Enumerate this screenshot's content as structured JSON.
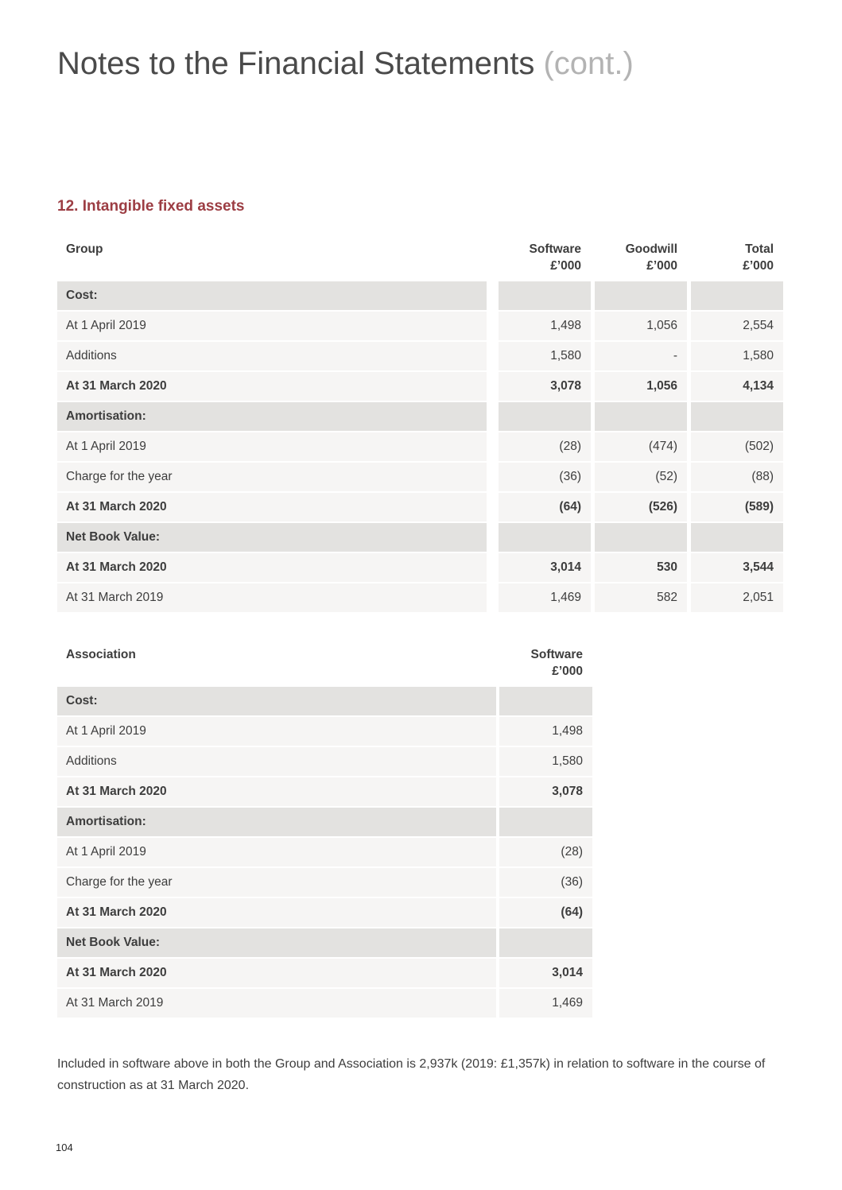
{
  "page": {
    "title": "Notes to the Financial Statements",
    "title_suffix": "(cont.)",
    "section_heading": "12. Intangible fixed assets",
    "footnote": "Included in software above in both the Group and Association is 2,937k (2019: £1,357k) in relation to software in the course of construction as at 31 March 2020.",
    "page_number": "104"
  },
  "colors": {
    "heading_accent": "#9c3d43",
    "title_text": "#4a4a4a",
    "title_suffix_text": "#b3b3b3",
    "section_row_bg": "#e3e2e0",
    "data_row_bg": "#f6f5f4",
    "body_text": "#3d3d3d"
  },
  "group_table": {
    "name": "Group",
    "columns": [
      {
        "label": "Software",
        "unit": "£’000"
      },
      {
        "label": "Goodwill",
        "unit": "£’000"
      },
      {
        "label": "Total",
        "unit": "£’000"
      }
    ],
    "rows": [
      {
        "type": "section",
        "label": "Cost:"
      },
      {
        "type": "data",
        "label": "At 1 April 2019",
        "values": [
          "1,498",
          "1,056",
          "2,554"
        ],
        "bold": false
      },
      {
        "type": "data",
        "label": "Additions",
        "values": [
          "1,580",
          "-",
          "1,580"
        ],
        "bold": false
      },
      {
        "type": "data",
        "label": "At 31 March 2020",
        "values": [
          "3,078",
          "1,056",
          "4,134"
        ],
        "bold": true
      },
      {
        "type": "section",
        "label": "Amortisation:"
      },
      {
        "type": "data",
        "label": "At 1 April 2019",
        "values": [
          "(28)",
          "(474)",
          "(502)"
        ],
        "bold": false
      },
      {
        "type": "data",
        "label": "Charge for the year",
        "values": [
          "(36)",
          "(52)",
          "(88)"
        ],
        "bold": false
      },
      {
        "type": "data",
        "label": "At 31 March 2020",
        "values": [
          "(64)",
          "(526)",
          "(589)"
        ],
        "bold": true
      },
      {
        "type": "section",
        "label": "Net Book Value:"
      },
      {
        "type": "data",
        "label": "At 31 March 2020",
        "values": [
          "3,014",
          "530",
          "3,544"
        ],
        "bold": true
      },
      {
        "type": "data",
        "label": "At 31 March 2019",
        "values": [
          "1,469",
          "582",
          "2,051"
        ],
        "bold": false
      }
    ]
  },
  "association_table": {
    "name": "Association",
    "columns": [
      {
        "label": "Software",
        "unit": "£’000"
      }
    ],
    "rows": [
      {
        "type": "section",
        "label": "Cost:"
      },
      {
        "type": "data",
        "label": "At 1 April 2019",
        "values": [
          "1,498"
        ],
        "bold": false
      },
      {
        "type": "data",
        "label": "Additions",
        "values": [
          "1,580"
        ],
        "bold": false
      },
      {
        "type": "data",
        "label": "At 31 March 2020",
        "values": [
          "3,078"
        ],
        "bold": true
      },
      {
        "type": "section",
        "label": "Amortisation:"
      },
      {
        "type": "data",
        "label": "At 1 April 2019",
        "values": [
          "(28)"
        ],
        "bold": false
      },
      {
        "type": "data",
        "label": "Charge for the year",
        "values": [
          "(36)"
        ],
        "bold": false
      },
      {
        "type": "data",
        "label": "At 31 March 2020",
        "values": [
          "(64)"
        ],
        "bold": true
      },
      {
        "type": "section",
        "label": "Net Book Value:"
      },
      {
        "type": "data",
        "label": "At 31 March 2020",
        "values": [
          "3,014"
        ],
        "bold": true
      },
      {
        "type": "data",
        "label": "At 31 March 2019",
        "values": [
          "1,469"
        ],
        "bold": false
      }
    ]
  }
}
